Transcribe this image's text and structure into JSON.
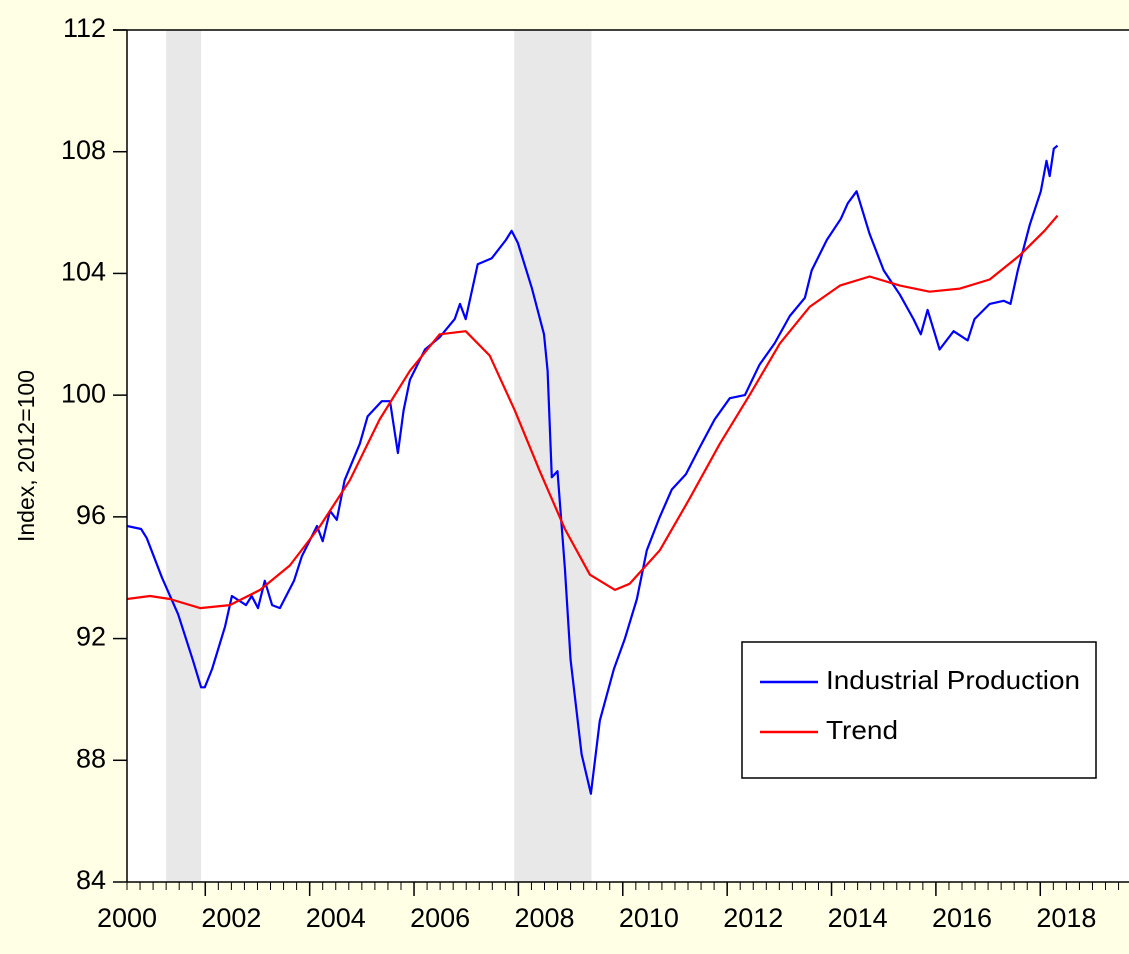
{
  "chart_data": {
    "type": "line",
    "y_label": "Index, 2012=100",
    "xlim": [
      2000.5,
      2019.7
    ],
    "xticks": [
      2000,
      2002,
      2004,
      2006,
      2008,
      2010,
      2012,
      2014,
      2016,
      2018
    ],
    "ylim": [
      84,
      112
    ],
    "yticks": [
      84,
      88,
      92,
      96,
      100,
      104,
      108,
      112
    ],
    "shaded_periods": [
      [
        2001.25,
        2001.92
      ],
      [
        2007.92,
        2009.4
      ]
    ],
    "shade_color": "#e8e8e8",
    "legend": "lower right",
    "series": [
      {
        "name": "Industrial Production",
        "color": "#0000ff",
        "x": [
          2000.5,
          2000.77,
          2000.88,
          2001.17,
          2001.48,
          2001.76,
          2001.92,
          2001.99,
          2002.13,
          2002.38,
          2002.51,
          2002.78,
          2002.89,
          2003.01,
          2003.14,
          2003.28,
          2003.43,
          2003.7,
          2003.85,
          2004.14,
          2004.25,
          2004.39,
          2004.52,
          2004.67,
          2004.96,
          2005.11,
          2005.38,
          2005.54,
          2005.69,
          2005.8,
          2005.92,
          2006.21,
          2006.49,
          2006.78,
          2006.88,
          2006.99,
          2007.22,
          2007.49,
          2007.76,
          2007.87,
          2007.99,
          2008.26,
          2008.49,
          2008.56,
          2008.64,
          2008.75,
          2008.89,
          2009.0,
          2009.21,
          2009.39,
          2009.56,
          2009.83,
          2010.04,
          2010.27,
          2010.46,
          2010.71,
          2010.94,
          2011.21,
          2011.48,
          2011.76,
          2012.05,
          2012.34,
          2012.62,
          2012.91,
          2013.2,
          2013.49,
          2013.62,
          2013.91,
          2014.18,
          2014.31,
          2014.48,
          2014.73,
          2015.0,
          2015.31,
          2015.57,
          2015.71,
          2015.84,
          2016.07,
          2016.34,
          2016.61,
          2016.74,
          2017.03,
          2017.3,
          2017.43,
          2017.57,
          2017.8,
          2018.01,
          2018.12,
          2018.18,
          2018.26,
          2018.33
        ],
        "values": [
          95.7,
          95.6,
          95.3,
          94.0,
          92.8,
          91.3,
          90.4,
          90.4,
          91.0,
          92.4,
          93.4,
          93.1,
          93.4,
          93.0,
          93.9,
          93.1,
          93.0,
          93.9,
          94.7,
          95.7,
          95.2,
          96.2,
          95.9,
          97.2,
          98.4,
          99.3,
          99.8,
          99.8,
          98.1,
          99.5,
          100.5,
          101.5,
          101.9,
          102.5,
          103.0,
          102.5,
          104.3,
          104.5,
          105.1,
          105.4,
          105.0,
          103.5,
          102.0,
          100.8,
          97.3,
          97.5,
          94.3,
          91.3,
          88.2,
          86.9,
          89.3,
          91.0,
          92.0,
          93.3,
          94.9,
          96.0,
          96.9,
          97.4,
          98.3,
          99.2,
          99.9,
          100.0,
          101.0,
          101.7,
          102.6,
          103.2,
          104.1,
          105.1,
          105.8,
          106.3,
          106.7,
          105.3,
          104.1,
          103.3,
          102.5,
          102.0,
          102.8,
          101.5,
          102.1,
          101.8,
          102.5,
          103.0,
          103.1,
          103.0,
          104.1,
          105.6,
          106.7,
          107.7,
          107.2,
          108.1,
          108.2
        ]
      },
      {
        "name": "Trend",
        "color": "#ff0000",
        "x": [
          2000.5,
          2000.94,
          2001.32,
          2001.9,
          2002.47,
          2003.05,
          2003.62,
          2004.2,
          2004.77,
          2005.34,
          2005.92,
          2006.49,
          2006.99,
          2007.45,
          2007.93,
          2008.41,
          2008.89,
          2009.37,
          2009.85,
          2010.13,
          2010.71,
          2011.28,
          2011.86,
          2012.43,
          2013.01,
          2013.58,
          2014.16,
          2014.73,
          2015.31,
          2015.88,
          2016.46,
          2017.03,
          2017.61,
          2018.08,
          2018.33
        ],
        "values": [
          93.3,
          93.4,
          93.3,
          93.0,
          93.1,
          93.6,
          94.4,
          95.7,
          97.2,
          99.2,
          100.8,
          102.0,
          102.1,
          101.3,
          99.5,
          97.5,
          95.6,
          94.1,
          93.6,
          93.8,
          94.9,
          96.6,
          98.4,
          100.0,
          101.7,
          102.9,
          103.6,
          103.9,
          103.6,
          103.4,
          103.5,
          103.8,
          104.6,
          105.4,
          105.9
        ]
      }
    ]
  }
}
